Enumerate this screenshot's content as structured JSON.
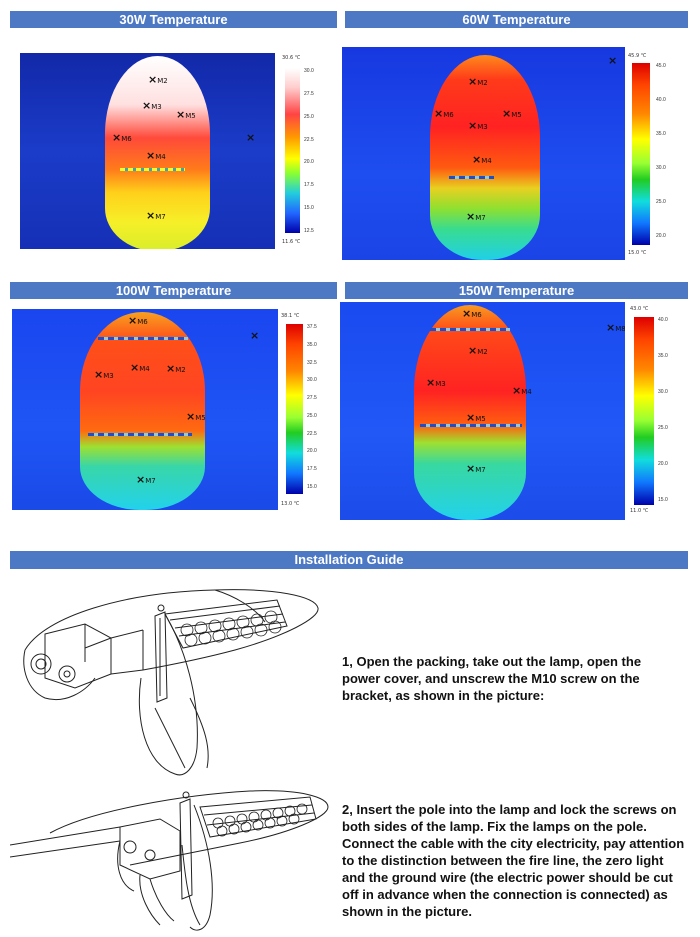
{
  "panels": [
    {
      "title": "30W Temperature",
      "max": "30.6 ℃",
      "min": "11.6 ℃",
      "ticks": [
        "30.0",
        "27.5",
        "25.0",
        "22.5",
        "20.0",
        "17.5",
        "15.0",
        "12.5"
      ],
      "markers": [
        "M2",
        "M3",
        "M5",
        "M6",
        "M4",
        "M7"
      ]
    },
    {
      "title": "60W Temperature",
      "max": "45.9 ℃",
      "min": "15.0 ℃",
      "ticks": [
        "45.0",
        "40.0",
        "35.0",
        "30.0",
        "25.0",
        "20.0"
      ],
      "markers": [
        "M2",
        "M6",
        "M3",
        "M5",
        "M4",
        "M7"
      ]
    },
    {
      "title": "100W Temperature",
      "max": "38.1 ℃",
      "min": "13.0 ℃",
      "ticks": [
        "37.5",
        "35.0",
        "32.5",
        "30.0",
        "27.5",
        "25.0",
        "22.5",
        "20.0",
        "17.5",
        "15.0"
      ],
      "markers": [
        "M6",
        "M3",
        "M4",
        "M2",
        "M5",
        "M7"
      ]
    },
    {
      "title": "150W Temperature",
      "max": "43.0 ℃",
      "min": "11.0 ℃",
      "ticks": [
        "40.0",
        "35.0",
        "30.0",
        "25.0",
        "20.0",
        "15.0"
      ],
      "markers": [
        "M6",
        "M2",
        "M3",
        "M4",
        "M5",
        "M7",
        "M8"
      ]
    }
  ],
  "guide_title": "Installation Guide",
  "steps": [
    "1, Open the packing, take out the lamp, open the power cover, and unscrew the M10 screw on the bracket, as shown in the picture:",
    "2, Insert the pole into the lamp and lock the screws on both sides of the lamp. Fix the lamps on the pole. Connect the cable with the city electricity, pay attention to the distinction between the fire line, the zero light and the ground wire (the electric power should be cut off in advance when the connection is connected) as shown in the picture."
  ]
}
